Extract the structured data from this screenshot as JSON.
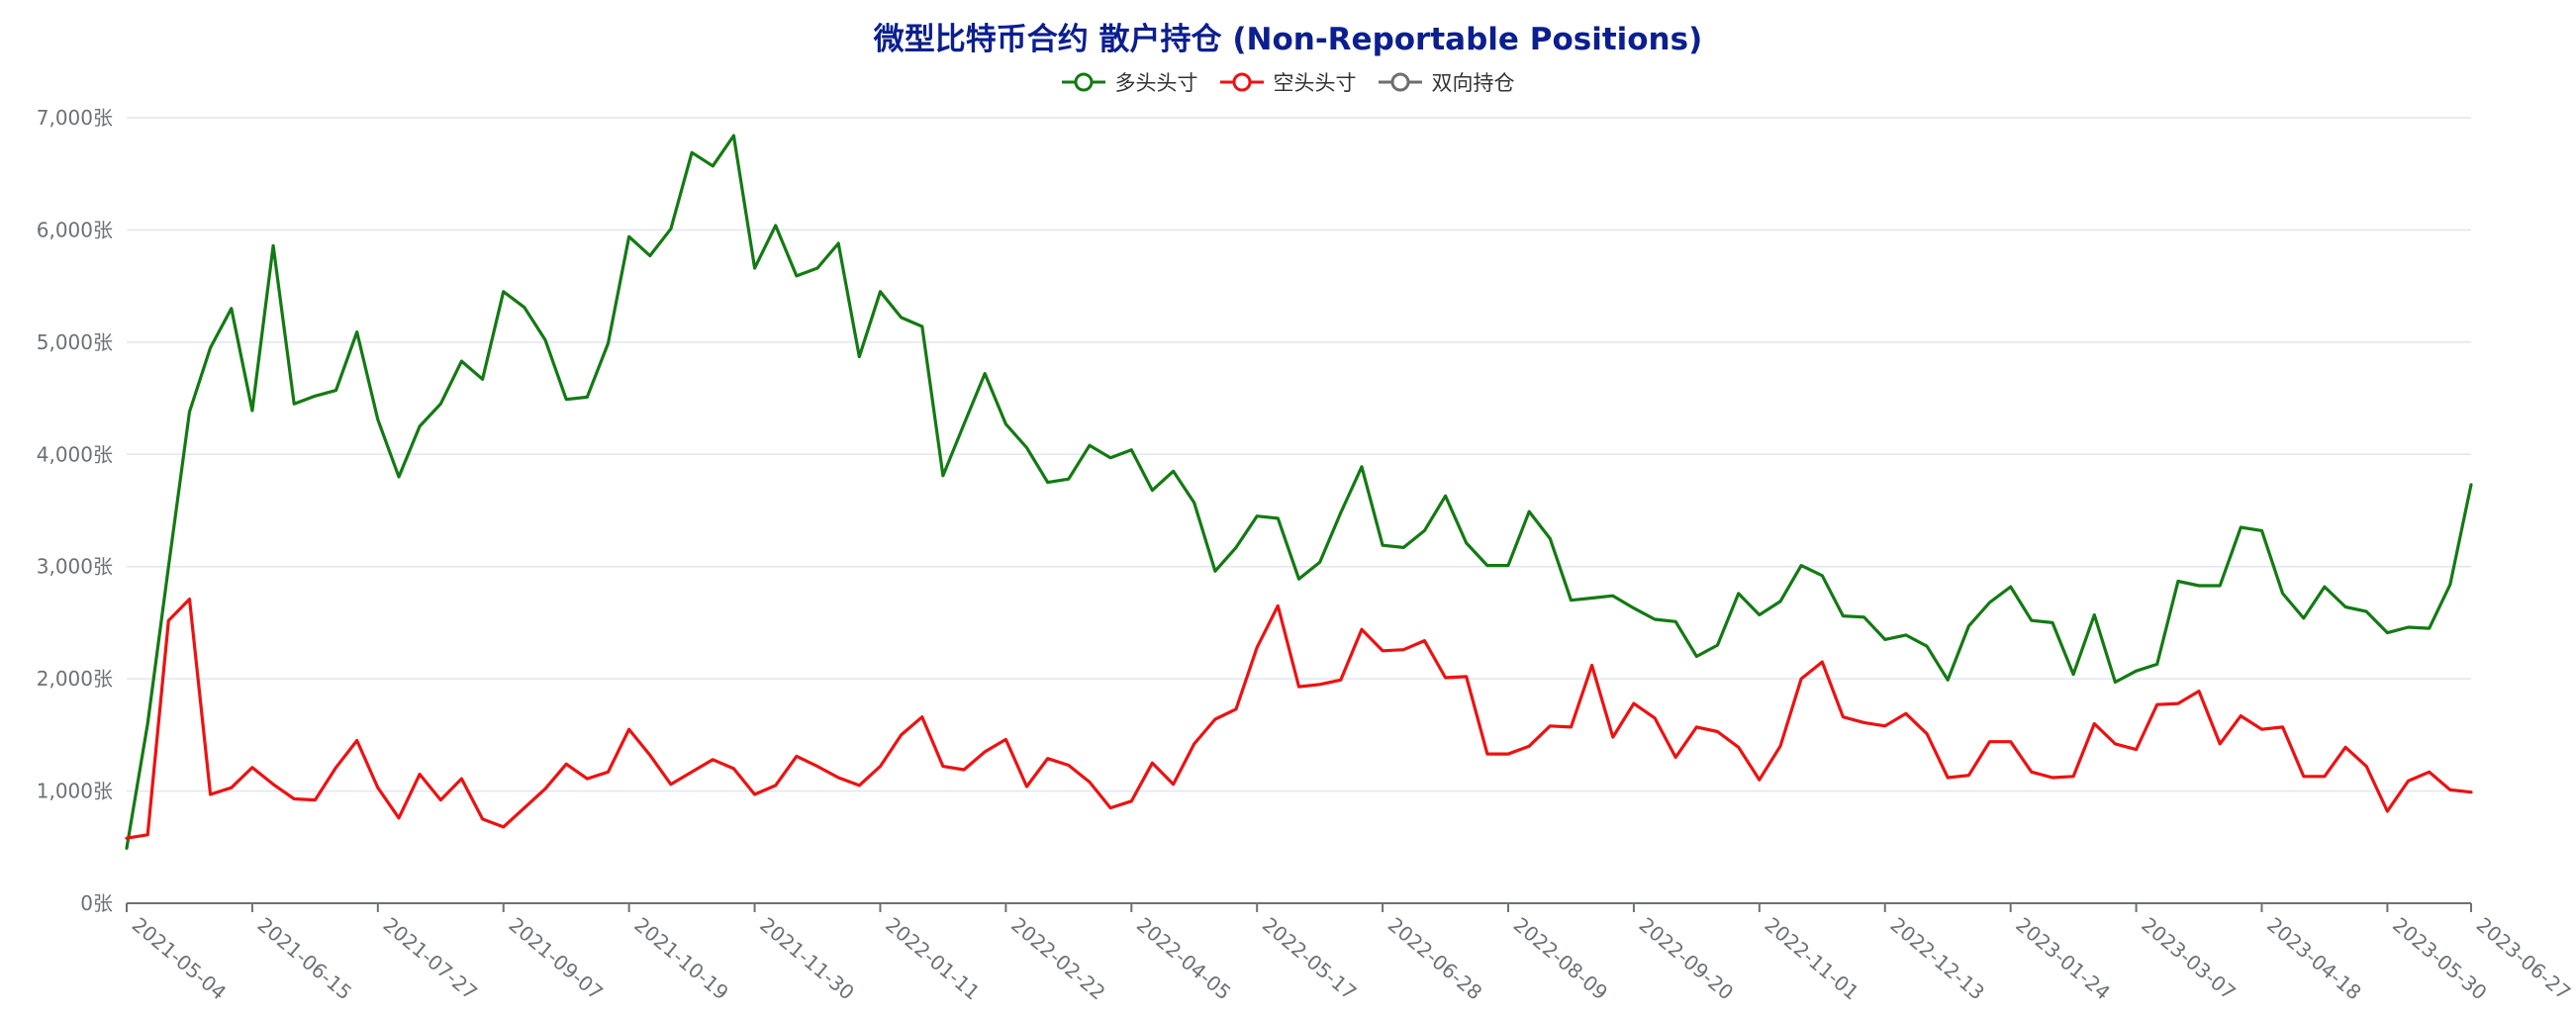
{
  "chart_data": {
    "type": "line",
    "title": "微型比特币合约 散户持仓 (Non-Reportable Positions)",
    "y_unit": "张",
    "ylim": [
      0,
      7000
    ],
    "y_ticks": [
      0,
      1000,
      2000,
      3000,
      4000,
      5000,
      6000,
      7000
    ],
    "y_tick_labels": [
      "0张",
      "1,000张",
      "2,000张",
      "3,000张",
      "4,000张",
      "5,000张",
      "6,000张",
      "7,000张"
    ],
    "x_tick_labels": [
      "2021-05-04",
      "2021-06-15",
      "2021-07-27",
      "2021-09-07",
      "2021-10-19",
      "2021-11-30",
      "2022-01-11",
      "2022-02-22",
      "2022-04-05",
      "2022-05-17",
      "2022-06-28",
      "2022-08-09",
      "2022-09-20",
      "2022-11-01",
      "2022-12-13",
      "2023-01-24",
      "2023-03-07",
      "2023-04-18",
      "2023-05-30",
      "2023-06-27"
    ],
    "x_start": "2021-05-04",
    "x_end": "2023-06-27",
    "grid": true,
    "legend_position": "top-center",
    "series": [
      {
        "name": "多头头寸",
        "color": "#137a13",
        "values": [
          490,
          1600,
          3000,
          4380,
          4950,
          5300,
          4390,
          5860,
          4450,
          4520,
          4570,
          5090,
          4310,
          3800,
          4250,
          4450,
          4830,
          4670,
          5450,
          5310,
          5020,
          4490,
          4510,
          4990,
          5940,
          5770,
          6010,
          6690,
          6570,
          6840,
          5660,
          6040,
          5590,
          5660,
          5880,
          4870,
          5450,
          5220,
          5140,
          3810,
          4270,
          4720,
          4270,
          4060,
          3750,
          3780,
          4080,
          3970,
          4040,
          3680,
          3850,
          3570,
          2960,
          3170,
          3450,
          3430,
          2890,
          3040,
          3480,
          3890,
          3190,
          3170,
          3320,
          3630,
          3210,
          3010,
          3010,
          3490,
          3250,
          2700,
          2720,
          2740,
          2630,
          2530,
          2510,
          2200,
          2300,
          2760,
          2570,
          2690,
          3010,
          2920,
          2560,
          2550,
          2350,
          2390,
          2290,
          1990,
          2470,
          2680,
          2820,
          2520,
          2500,
          2040,
          2570,
          1970,
          2070,
          2130,
          2870,
          2830,
          2830,
          3350,
          3320,
          2760,
          2540,
          2820,
          2640,
          2600,
          2410,
          2460,
          2450,
          2840,
          3730
        ]
      },
      {
        "name": "空头头寸",
        "color": "#ee1111",
        "values": [
          580,
          610,
          2520,
          2710,
          970,
          1030,
          1210,
          1060,
          930,
          920,
          1210,
          1450,
          1030,
          760,
          1150,
          920,
          1110,
          750,
          680,
          850,
          1020,
          1240,
          1110,
          1170,
          1550,
          1320,
          1060,
          1170,
          1280,
          1200,
          970,
          1050,
          1310,
          1220,
          1120,
          1050,
          1220,
          1500,
          1660,
          1220,
          1190,
          1350,
          1460,
          1040,
          1290,
          1230,
          1080,
          850,
          910,
          1250,
          1060,
          1420,
          1640,
          1730,
          2280,
          2650,
          1930,
          1950,
          1990,
          2440,
          2250,
          2260,
          2340,
          2010,
          2020,
          1330,
          1330,
          1400,
          1580,
          1570,
          2120,
          1480,
          1780,
          1650,
          1300,
          1570,
          1530,
          1390,
          1100,
          1400,
          2000,
          2150,
          1660,
          1610,
          1580,
          1690,
          1510,
          1120,
          1140,
          1440,
          1440,
          1170,
          1120,
          1130,
          1600,
          1420,
          1370,
          1770,
          1780,
          1890,
          1420,
          1670,
          1550,
          1570,
          1130,
          1130,
          1390,
          1220,
          820,
          1090,
          1170,
          1010,
          990
        ]
      },
      {
        "name": "双向持仓",
        "color": "#6e6e6e",
        "values": []
      }
    ]
  }
}
